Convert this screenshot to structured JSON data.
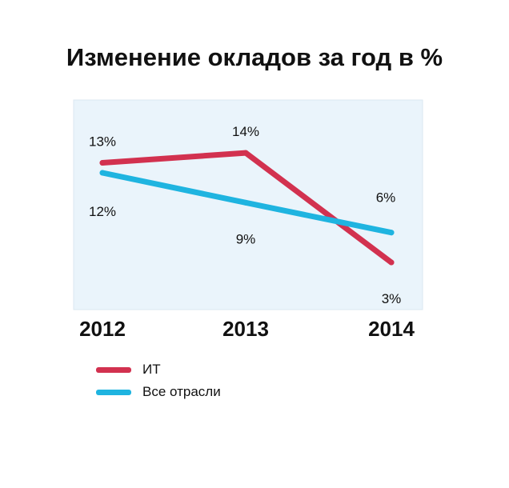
{
  "chart_data": {
    "type": "line",
    "title": "Изменение окладов за год в %",
    "categories": [
      "2012",
      "2013",
      "2014"
    ],
    "series": [
      {
        "name": "ИТ",
        "color": "#d2314f",
        "values": [
          13,
          14,
          3
        ],
        "labels": [
          "13%",
          "14%",
          "3%"
        ]
      },
      {
        "name": "Все отрасли",
        "color": "#1fb4e0",
        "values": [
          12,
          9,
          6
        ],
        "labels": [
          "12%",
          "9%",
          "6%"
        ]
      }
    ],
    "plot_background": "#eaf4fb",
    "grid": false,
    "legend_position": "bottom-left"
  }
}
